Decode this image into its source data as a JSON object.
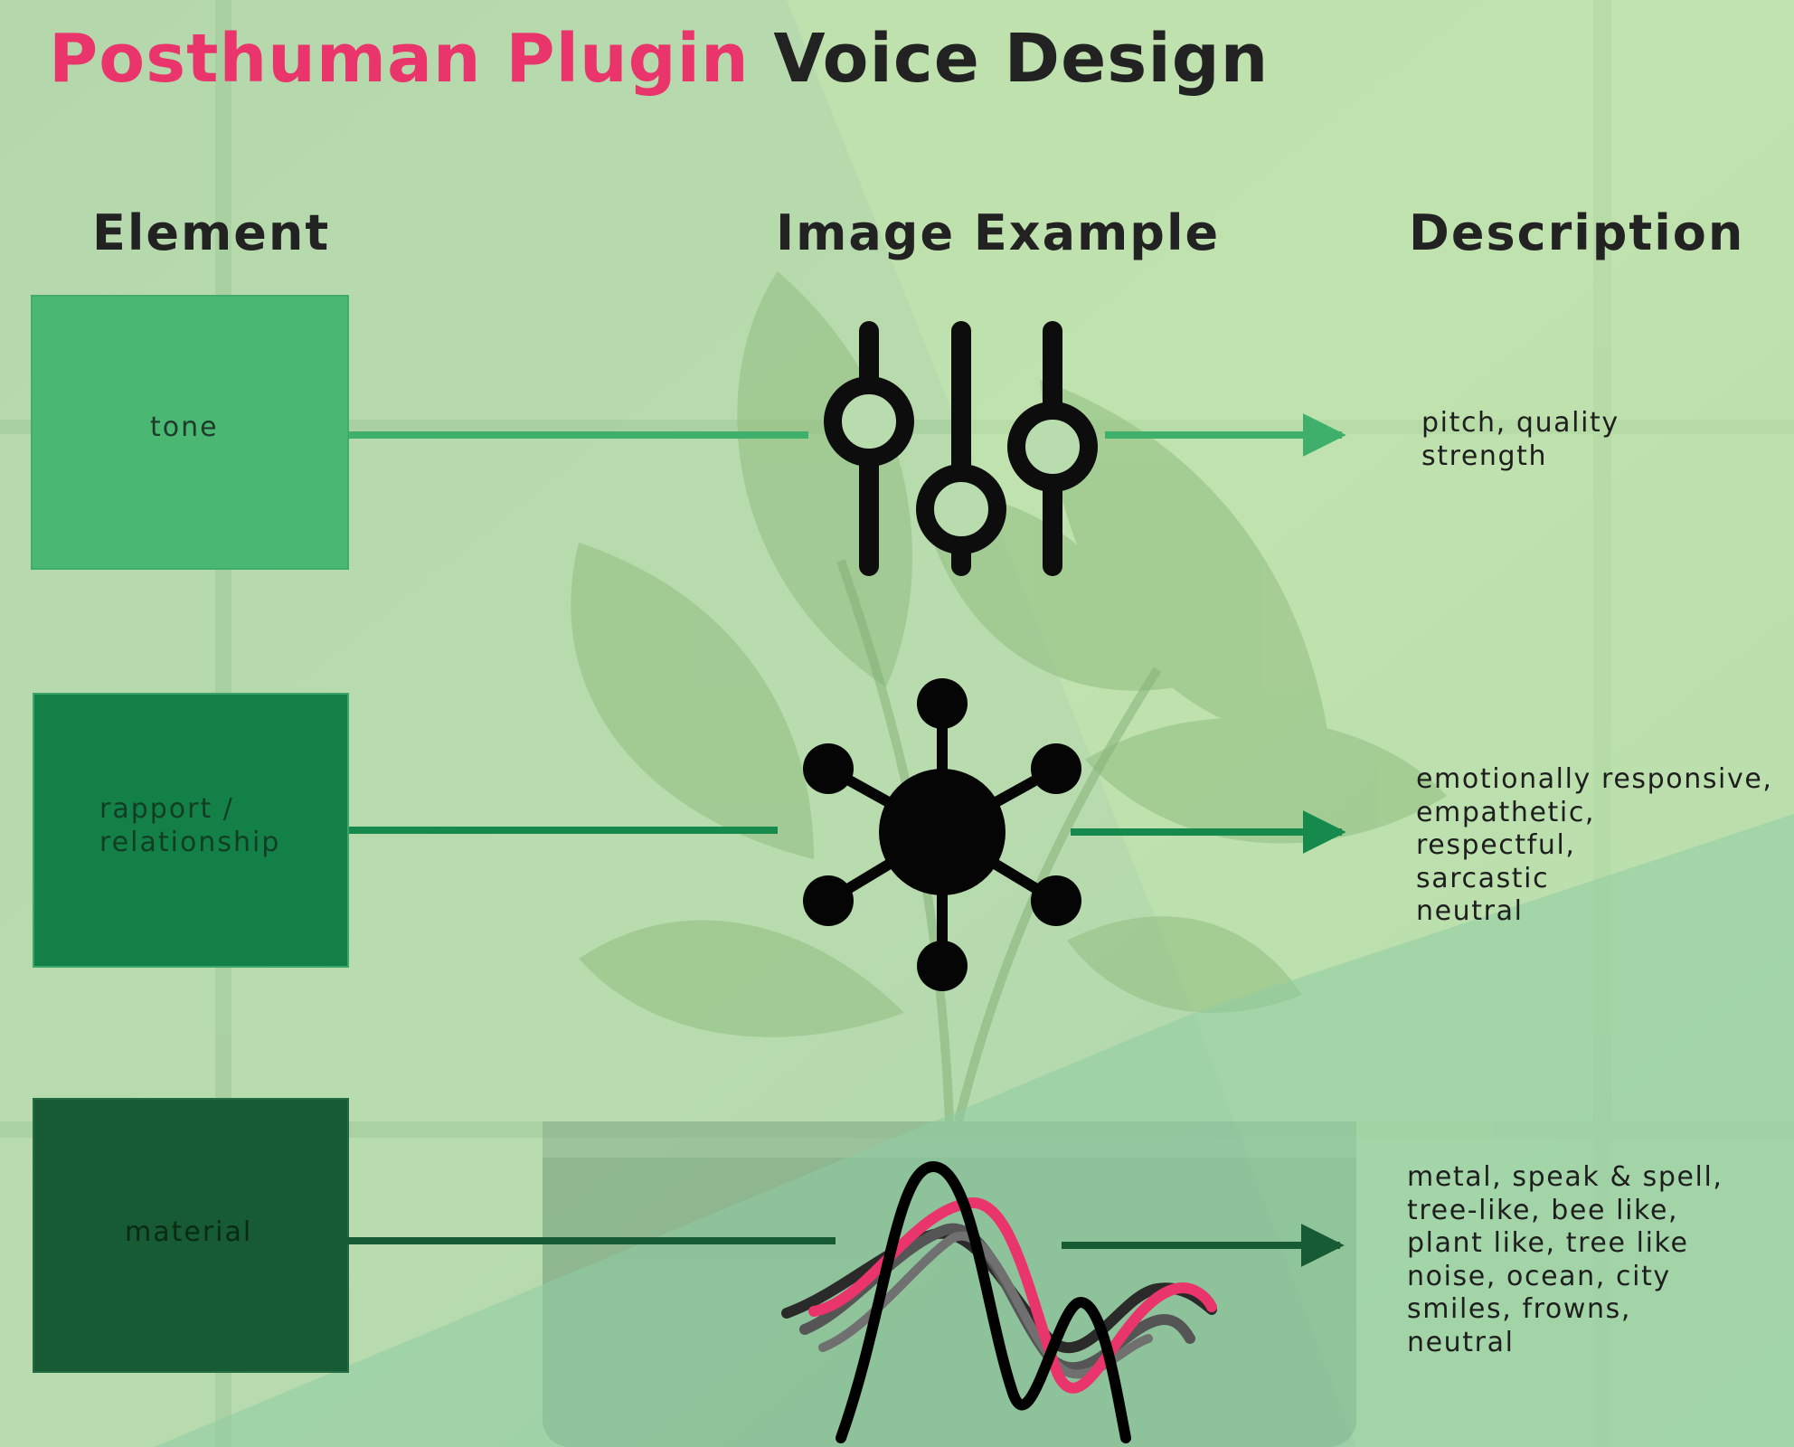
{
  "title": {
    "part1": "Posthuman Plugin",
    "part2": "Voice Design"
  },
  "columns": {
    "element": "Element",
    "image": "Image Example",
    "description": "Description"
  },
  "colors": {
    "title_accent": "#e9356b",
    "tone": "#4ab872",
    "rapport": "#138147",
    "material": "#175b34",
    "wave_pink": "#e9356b",
    "wave_grey": "#555555",
    "wave_black": "#000000"
  },
  "rows": [
    {
      "element": "tone",
      "icon": "equalizer-sliders-icon",
      "description": [
        "pitch, quality",
        "strength"
      ]
    },
    {
      "element_lines": [
        "rapport /",
        "relationship"
      ],
      "icon": "network-hub-icon",
      "description": [
        "emotionally responsive,",
        "empathetic,",
        "respectful,",
        "sarcastic",
        "neutral"
      ]
    },
    {
      "element": "material",
      "icon": "sound-wave-icon",
      "description": [
        "metal, speak & spell,",
        "tree-like, bee like,",
        "plant like, tree like",
        "noise, ocean, city",
        "smiles, frowns,",
        "neutral"
      ]
    }
  ]
}
